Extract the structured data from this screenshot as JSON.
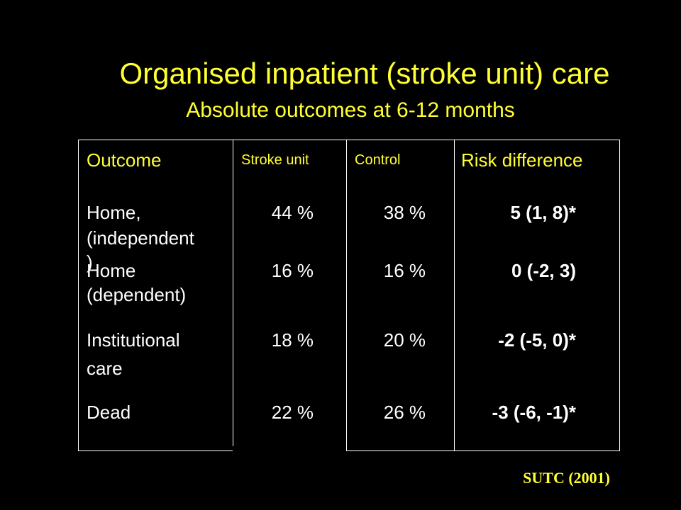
{
  "slide": {
    "title": "Organised inpatient (stroke unit) care",
    "subtitle": "Absolute outcomes at 6-12 months",
    "citation": "SUTC (2001)"
  },
  "table": {
    "headers": {
      "outcome": "Outcome",
      "stroke_unit": "Stroke unit",
      "control": "Control",
      "risk_difference": "Risk difference"
    },
    "rows": [
      {
        "outcome_line1": "Home,",
        "outcome_line2": "(independent",
        "outcome_line3": ")",
        "stroke_unit": "44 %",
        "control": "38 %",
        "risk_difference": "5 (1, 8)*"
      },
      {
        "outcome_line1": "Home",
        "outcome_line2": "(dependent)",
        "stroke_unit": "16 %",
        "control": "16 %",
        "risk_difference": "0 (-2, 3)"
      },
      {
        "outcome_line1": "Institutional",
        "outcome_line2": "care",
        "stroke_unit": "18 %",
        "control": "20 %",
        "risk_difference": "-2 (-5, 0)*"
      },
      {
        "outcome_line1": "Dead",
        "stroke_unit": "22 %",
        "control": "26 %",
        "risk_difference": "-3 (-6, -1)*"
      }
    ]
  },
  "colors": {
    "background": "#000000",
    "title": "#ffff33",
    "header_text": "#ffff33",
    "body_text": "#ffffff",
    "border": "#ffffff"
  }
}
